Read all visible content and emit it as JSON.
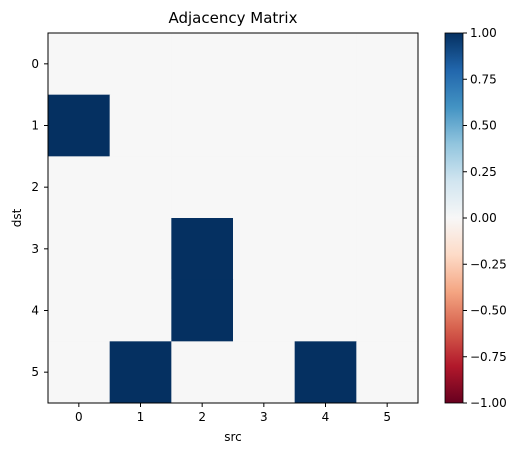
{
  "chart_data": {
    "type": "heatmap",
    "title": "Adjacency Matrix",
    "xlabel": "src",
    "ylabel": "dst",
    "x_categories": [
      "0",
      "1",
      "2",
      "3",
      "4",
      "5"
    ],
    "y_categories": [
      "0",
      "1",
      "2",
      "3",
      "4",
      "5"
    ],
    "matrix": [
      [
        0,
        0,
        0,
        0,
        0,
        0
      ],
      [
        1,
        0,
        0,
        0,
        0,
        0
      ],
      [
        0,
        0,
        0,
        0,
        0,
        0
      ],
      [
        0,
        0,
        1,
        0,
        0,
        0
      ],
      [
        0,
        0,
        1,
        0,
        0,
        0
      ],
      [
        0,
        1,
        0,
        0,
        1,
        0
      ]
    ],
    "colormap": "RdBu",
    "vmin": -1.0,
    "vmax": 1.0,
    "colorbar_ticks": [
      "1.00",
      "0.75",
      "0.50",
      "0.25",
      "0.00",
      "−0.25",
      "−0.50",
      "−0.75",
      "−1.00"
    ],
    "colorbar_values": [
      1.0,
      0.75,
      0.5,
      0.25,
      0.0,
      -0.25,
      -0.5,
      -0.75,
      -1.0
    ]
  }
}
